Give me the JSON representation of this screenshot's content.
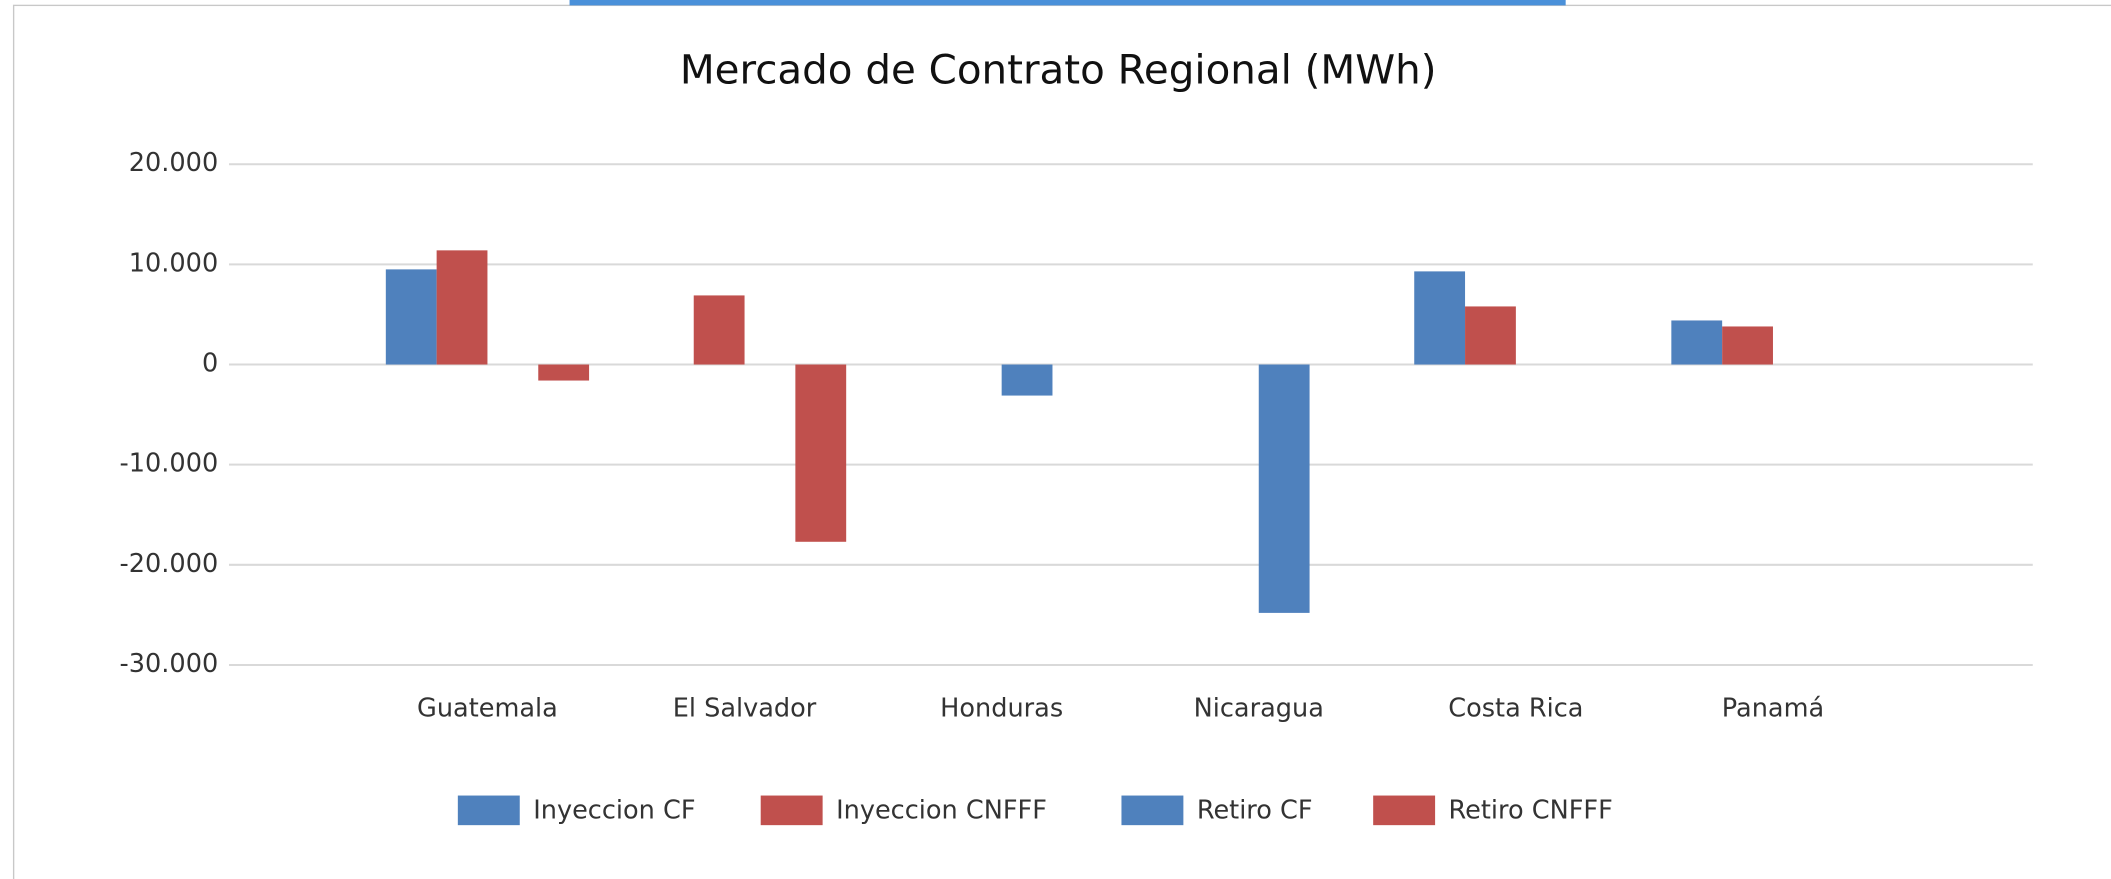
{
  "chart_data": {
    "type": "bar",
    "title": "Mercado de Contrato Regional (MWh)",
    "categories": [
      "Guatemala",
      "El Salvador",
      "Honduras",
      "Nicaragua",
      "Costa Rica",
      "Panamá"
    ],
    "series": [
      {
        "name": "Inyeccion CF",
        "color": "#4f81bd",
        "values": [
          9500,
          0,
          0,
          0,
          9300,
          4400
        ]
      },
      {
        "name": "Inyeccion CNFFF",
        "color": "#c0504d",
        "values": [
          11400,
          6900,
          0,
          0,
          5800,
          3800
        ]
      },
      {
        "name": "Retiro CF",
        "color": "#4f81bd",
        "values": [
          0,
          0,
          -3100,
          -24800,
          0,
          0
        ]
      },
      {
        "name": "Retiro CNFFF",
        "color": "#c0504d",
        "values": [
          -1600,
          -17700,
          0,
          0,
          0,
          0
        ]
      }
    ],
    "ylim": [
      -30000,
      20000
    ],
    "yticks": [
      {
        "value": -30000,
        "label": "-30.000"
      },
      {
        "value": -20000,
        "label": "-20.000"
      },
      {
        "value": -10000,
        "label": "-10.000"
      },
      0,
      {
        "value": 10000,
        "label": "10.000"
      },
      {
        "value": 20000,
        "label": "20.000"
      }
    ],
    "grid": true,
    "legend": "bottom"
  }
}
